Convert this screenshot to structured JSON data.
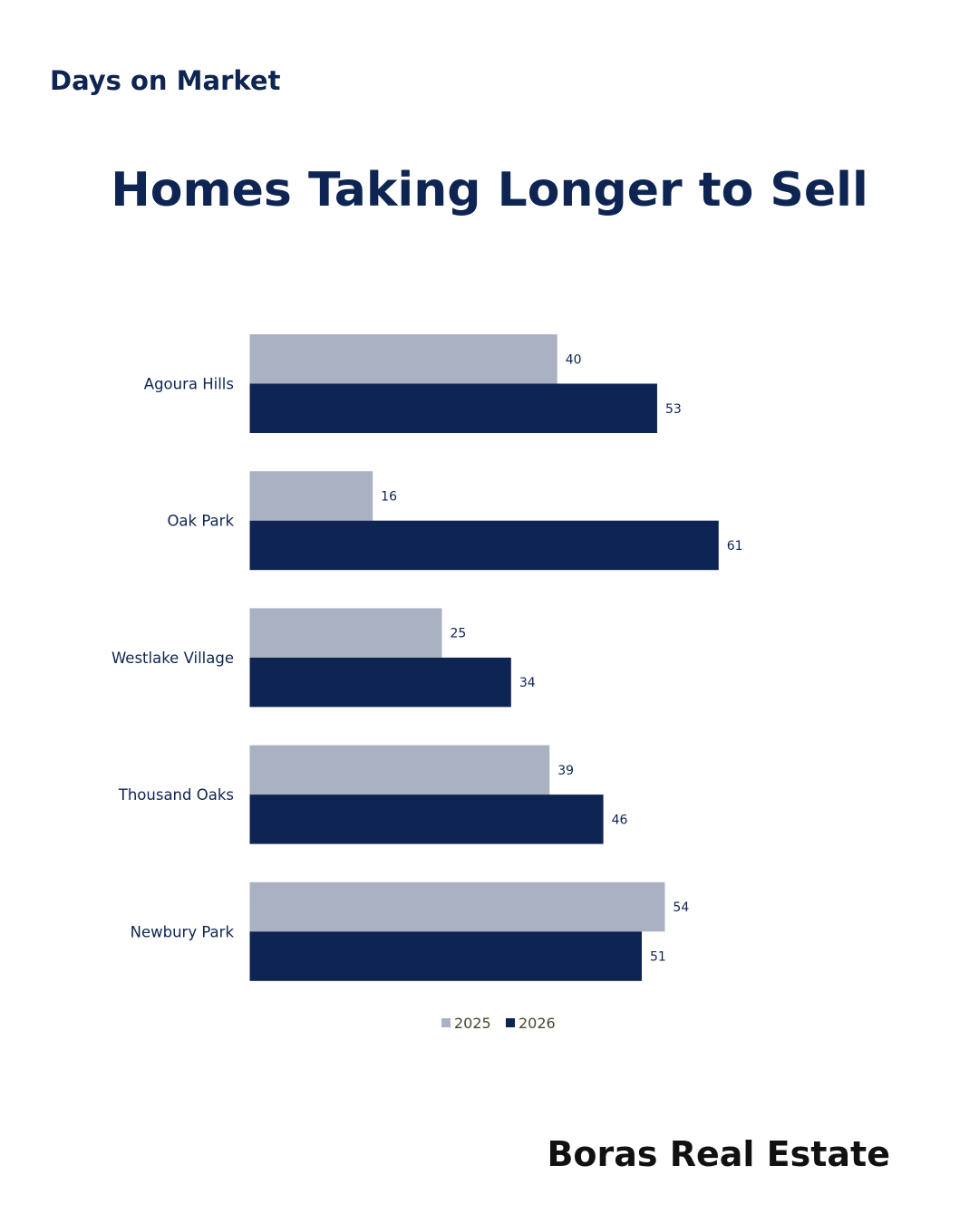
{
  "header": {
    "kicker": "Days on Market",
    "title": "Homes Taking Longer to Sell"
  },
  "footer": {
    "brand": "Boras Real Estate"
  },
  "chart_data": {
    "type": "bar",
    "orientation": "horizontal",
    "categories": [
      "Agoura Hills",
      "Oak Park",
      "Westlake Village",
      "Thousand Oaks",
      "Newbury Park"
    ],
    "series": [
      {
        "name": "2025",
        "values": [
          40,
          16,
          25,
          39,
          54
        ],
        "color": "#a9b1c2"
      },
      {
        "name": "2026",
        "values": [
          53,
          61,
          34,
          46,
          51
        ],
        "color": "#0e2452"
      }
    ],
    "title": "Homes Taking Longer to Sell",
    "xlabel": "",
    "ylabel": "",
    "xlim": [
      0,
      80
    ],
    "grid": false,
    "legend": "bottom",
    "data_labels": true
  }
}
